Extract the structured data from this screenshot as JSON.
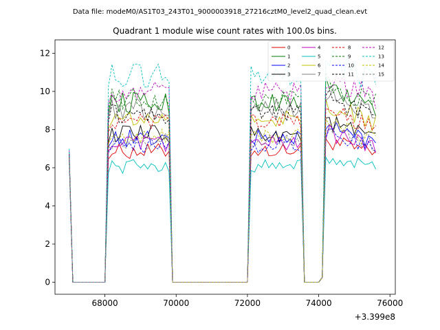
{
  "chart_data": {
    "type": "line",
    "suptitle": "Data file: modeM0/AS1T03_243T01_9000003918_27216cztM0_level2_quad_clean.evt",
    "title": "Quadrant 1 module wise count rates with 100.0s bins.",
    "xlabel": "",
    "ylabel": "",
    "x_offset_label": "+3.399e8",
    "xlim": [
      66600,
      76150
    ],
    "ylim": [
      -0.63,
      12.7
    ],
    "x_ticks": [
      68000,
      70000,
      72000,
      74000,
      76000
    ],
    "x_tick_labels": [
      "68000",
      "70000",
      "72000",
      "74000",
      "76000"
    ],
    "y_ticks": [
      0,
      2,
      4,
      6,
      8,
      10,
      12
    ],
    "y_tick_labels": [
      "0",
      "2",
      "4",
      "6",
      "8",
      "10",
      "12"
    ],
    "grid": false,
    "legend_position": "top-right",
    "segments": [
      {
        "start": 67000,
        "end": 67950
      },
      {
        "start": 68050,
        "end": 69850
      },
      {
        "start": 69950,
        "end": 71950
      },
      {
        "start": 72050,
        "end": 73550
      },
      {
        "start": 73650,
        "end": 74050
      },
      {
        "start": 74150,
        "end": 75650
      }
    ],
    "series": [
      {
        "name": "0",
        "color": "#e00000",
        "dash": "solid",
        "level": 7.0,
        "start": 6.4
      },
      {
        "name": "1",
        "color": "#007a00",
        "dash": "solid",
        "level": 9.6,
        "start": 6.7
      },
      {
        "name": "2",
        "color": "#0000ff",
        "dash": "solid",
        "level": 7.7,
        "start": 6.5
      },
      {
        "name": "3",
        "color": "#000000",
        "dash": "solid",
        "level": 7.9,
        "start": 6.6
      },
      {
        "name": "4",
        "color": "#bf00bf",
        "dash": "solid",
        "level": 7.4,
        "start": 6.5
      },
      {
        "name": "5",
        "color": "#00bfbf",
        "dash": "solid",
        "level": 6.2,
        "start": 6.3
      },
      {
        "name": "6",
        "color": "#bfbf00",
        "dash": "solid",
        "level": 8.7,
        "start": 6.6
      },
      {
        "name": "7",
        "color": "#808080",
        "dash": "solid",
        "level": 9.3,
        "start": 6.7
      },
      {
        "name": "8",
        "color": "#e00000",
        "dash": "dashed",
        "level": 8.5,
        "start": 6.6
      },
      {
        "name": "9",
        "color": "#007a00",
        "dash": "dashed",
        "level": 9.8,
        "start": 6.8
      },
      {
        "name": "10",
        "color": "#0000ff",
        "dash": "dashed",
        "level": 7.3,
        "start": 6.5
      },
      {
        "name": "11",
        "color": "#000000",
        "dash": "dashed",
        "level": 9.0,
        "start": 6.7
      },
      {
        "name": "12",
        "color": "#bf00bf",
        "dash": "dashed",
        "level": 10.1,
        "start": 6.9
      },
      {
        "name": "13",
        "color": "#00bfbf",
        "dash": "dashed",
        "level": 11.0,
        "start": 7.0
      },
      {
        "name": "14",
        "color": "#bfbf00",
        "dash": "dashed",
        "level": 7.8,
        "start": 6.5
      },
      {
        "name": "15",
        "color": "#808080",
        "dash": "dashed",
        "level": 7.6,
        "start": 6.5
      }
    ]
  }
}
